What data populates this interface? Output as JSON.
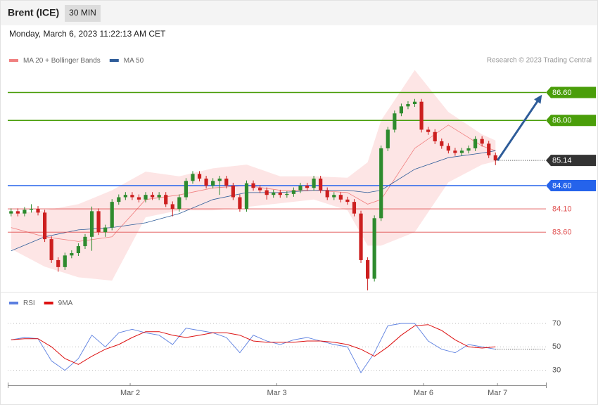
{
  "header": {
    "title": "Brent (ICE)",
    "interval": "30 MIN",
    "timestamp": "Monday, March 6, 2023 11:22:13 AM CET",
    "credit": "Research © 2023 Trading Central"
  },
  "chart_data": [
    {
      "type": "candlestick",
      "legend": [
        {
          "name": "MA 20 + Bollinger Bands",
          "color": "#f08080"
        },
        {
          "name": "MA 50",
          "color": "#2e5c99"
        }
      ],
      "xlim": [
        -0.5,
        79.5
      ],
      "xticks": [
        {
          "value": 17.7,
          "label": "Mar 2"
        },
        {
          "value": 39.5,
          "label": "Mar 3"
        },
        {
          "value": 61.3,
          "label": "Mar 6"
        },
        {
          "value": 72.3,
          "label": "Mar 7"
        }
      ],
      "ylim": [
        82.35,
        87.15
      ],
      "up_color": "#2e8b2e",
      "down_color": "#cc1f1f",
      "candles": {
        "open": [
          84.0,
          84.05,
          84.0,
          84.08,
          84.1,
          84.02,
          83.45,
          83.0,
          82.85,
          83.1,
          83.15,
          83.3,
          83.5,
          84.05,
          83.6,
          83.7,
          84.25,
          84.35,
          84.4,
          84.35,
          84.3,
          84.4,
          84.35,
          84.4,
          84.2,
          84.1,
          84.35,
          84.7,
          84.85,
          84.75,
          84.6,
          84.7,
          84.75,
          84.6,
          84.35,
          84.1,
          84.65,
          84.55,
          84.5,
          84.4,
          84.45,
          84.4,
          84.42,
          84.5,
          84.6,
          84.55,
          84.75,
          84.5,
          84.35,
          84.4,
          84.3,
          84.25,
          84.0,
          83.0,
          82.6,
          83.9,
          85.4,
          85.8,
          86.15,
          86.3,
          86.35,
          86.4,
          85.8,
          85.75,
          85.55,
          85.45,
          85.35,
          85.3,
          85.35,
          85.4,
          85.6,
          85.5,
          85.25
        ],
        "high": [
          84.11,
          84.11,
          84.14,
          84.2,
          84.16,
          84.08,
          83.51,
          83.06,
          83.16,
          83.21,
          83.36,
          83.56,
          84.15,
          84.11,
          83.76,
          84.31,
          84.41,
          84.46,
          84.46,
          84.41,
          84.46,
          84.46,
          84.46,
          84.46,
          84.26,
          84.41,
          84.76,
          84.91,
          84.91,
          84.81,
          84.76,
          84.81,
          84.81,
          84.66,
          84.41,
          84.71,
          84.71,
          84.61,
          84.56,
          84.51,
          84.51,
          84.48,
          84.56,
          84.66,
          84.66,
          84.81,
          84.81,
          84.56,
          84.46,
          84.46,
          84.36,
          84.31,
          84.06,
          83.06,
          83.96,
          85.46,
          85.86,
          86.21,
          86.36,
          86.41,
          86.46,
          86.46,
          85.86,
          85.81,
          85.61,
          85.51,
          85.41,
          85.41,
          85.46,
          85.66,
          85.66,
          85.56,
          85.31
        ],
        "low": [
          83.94,
          83.94,
          83.94,
          84.02,
          83.96,
          83.39,
          82.94,
          82.75,
          82.79,
          83.04,
          83.09,
          83.24,
          83.2,
          83.54,
          83.5,
          83.64,
          84.19,
          84.29,
          84.29,
          84.24,
          84.24,
          84.29,
          84.29,
          84.14,
          83.94,
          84.04,
          84.29,
          84.64,
          84.69,
          84.54,
          84.54,
          84.4,
          84.54,
          84.29,
          84.04,
          84.04,
          84.49,
          84.44,
          84.3,
          84.34,
          84.34,
          84.34,
          84.36,
          84.44,
          84.49,
          84.49,
          84.44,
          84.29,
          84.29,
          84.24,
          84.19,
          83.94,
          82.94,
          82.35,
          82.54,
          83.84,
          85.34,
          85.74,
          86.09,
          86.24,
          86.29,
          85.74,
          85.69,
          85.49,
          85.39,
          85.29,
          85.24,
          85.24,
          85.29,
          85.34,
          85.44,
          85.19,
          85.04
        ],
        "close": [
          84.05,
          84.0,
          84.08,
          84.1,
          84.02,
          83.45,
          83.0,
          82.85,
          83.1,
          83.15,
          83.3,
          83.5,
          84.05,
          83.6,
          83.7,
          84.25,
          84.35,
          84.4,
          84.35,
          84.3,
          84.4,
          84.35,
          84.4,
          84.2,
          84.1,
          84.35,
          84.7,
          84.85,
          84.75,
          84.6,
          84.7,
          84.75,
          84.6,
          84.35,
          84.1,
          84.65,
          84.55,
          84.5,
          84.4,
          84.45,
          84.4,
          84.42,
          84.5,
          84.6,
          84.55,
          84.75,
          84.5,
          84.35,
          84.4,
          84.3,
          84.25,
          84.0,
          83.0,
          82.6,
          83.9,
          85.4,
          85.8,
          86.15,
          86.3,
          86.35,
          86.4,
          85.8,
          85.75,
          85.55,
          85.45,
          85.35,
          85.3,
          85.35,
          85.4,
          85.6,
          85.5,
          85.25,
          85.14
        ]
      },
      "bands": {
        "x": [
          0,
          5,
          10,
          15,
          20,
          25,
          30,
          35,
          40,
          45,
          50,
          53,
          55,
          60,
          65,
          70,
          72
        ],
        "upper": [
          84.0,
          84.07,
          84.2,
          84.5,
          84.9,
          84.8,
          84.97,
          85.05,
          84.8,
          84.8,
          84.77,
          85.1,
          86.0,
          87.08,
          86.18,
          85.7,
          85.57
        ],
        "lower": [
          83.24,
          82.86,
          82.63,
          82.56,
          83.92,
          84.07,
          84.07,
          84.14,
          84.22,
          84.3,
          84.07,
          83.31,
          83.31,
          83.6,
          84.67,
          85.05,
          85.12
        ],
        "ma20": [
          83.7,
          83.5,
          83.4,
          83.5,
          84.3,
          84.4,
          84.55,
          84.6,
          84.5,
          84.5,
          84.45,
          84.2,
          84.3,
          85.4,
          85.9,
          85.45,
          85.35
        ],
        "ma50": [
          83.2,
          83.5,
          83.65,
          83.7,
          83.8,
          84.0,
          84.3,
          84.45,
          84.45,
          84.5,
          84.5,
          84.45,
          84.5,
          84.95,
          85.2,
          85.3,
          85.35
        ]
      },
      "levels": [
        {
          "value": 86.6,
          "label": "86.60",
          "color": "#4a9e0a",
          "style": "box"
        },
        {
          "value": 86.0,
          "label": "86.00",
          "color": "#4a9e0a",
          "style": "box"
        },
        {
          "value": 84.6,
          "label": "84.60",
          "color": "#2563eb",
          "style": "box"
        },
        {
          "value": 84.1,
          "label": "84.10",
          "color": "#e05050",
          "style": "text"
        },
        {
          "value": 83.6,
          "label": "83.60",
          "color": "#e05050",
          "style": "text"
        }
      ],
      "last": {
        "value": 85.14,
        "label": "85.14",
        "color": "#333333"
      },
      "arrow": {
        "x": [
          72.3,
          78.9
        ],
        "y": [
          85.14,
          86.55
        ],
        "color": "#2e5c99"
      }
    },
    {
      "type": "line",
      "xlim": [
        -0.5,
        79.5
      ],
      "ylim": [
        22,
        79
      ],
      "yticks": [
        70,
        50,
        30
      ],
      "x": [
        0,
        2,
        4,
        6,
        8,
        10,
        12,
        14,
        16,
        18,
        20,
        22,
        24,
        26,
        28,
        30,
        32,
        34,
        36,
        38,
        40,
        42,
        44,
        46,
        48,
        50,
        52,
        54,
        56,
        58,
        60,
        62,
        64,
        66,
        68,
        70,
        72
      ],
      "series": [
        {
          "name": "RSI",
          "color": "#5b7fe0",
          "values": [
            56,
            58,
            57,
            38,
            30,
            40,
            60,
            50,
            62,
            65,
            62,
            60,
            52,
            66,
            64,
            62,
            58,
            45,
            60,
            55,
            52,
            56,
            58,
            55,
            52,
            50,
            28,
            45,
            68,
            70,
            70,
            55,
            48,
            45,
            52,
            50,
            48
          ]
        },
        {
          "name": "9MA",
          "color": "#dd1111",
          "values": [
            56,
            57,
            57,
            50,
            40,
            35,
            42,
            48,
            52,
            58,
            63,
            63,
            60,
            58,
            60,
            62,
            62,
            60,
            55,
            54,
            54,
            54,
            55,
            55,
            54,
            52,
            48,
            42,
            50,
            60,
            68,
            69,
            64,
            56,
            50,
            49,
            50
          ]
        }
      ]
    }
  ]
}
